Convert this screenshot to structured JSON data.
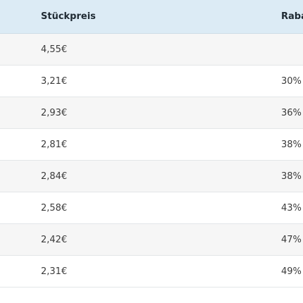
{
  "table": {
    "header": [
      "Stückpreis",
      "Rabatt"
    ],
    "rows": [
      [
        "4,55€"
      ],
      [
        "3,21€",
        "30%"
      ],
      [
        "2,93€",
        "36%"
      ],
      [
        "2,81€",
        "38%"
      ],
      [
        "2,84€",
        "38%"
      ],
      [
        "2,58€",
        "43%"
      ],
      [
        "2,42€",
        "47%"
      ],
      [
        "2,31€",
        "49%"
      ]
    ]
  }
}
